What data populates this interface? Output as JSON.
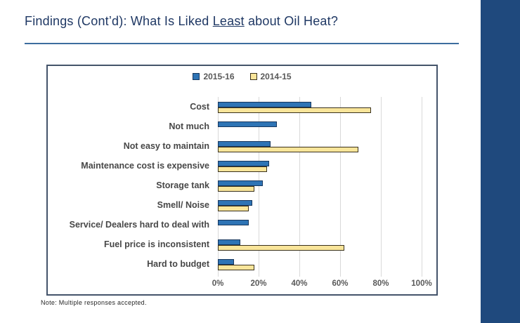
{
  "slide": {
    "title": {
      "prefix": "Findings (Cont’d): What Is Liked ",
      "underlined": "Least",
      "suffix": " about Oil Heat?"
    },
    "note": "Note: Multiple responses accepted."
  },
  "colors": {
    "title_text": "#1F3864",
    "title_rule": "#3C6D9E",
    "accent_band": "#1F497D",
    "chart_border": "#44546A",
    "gridline": "#D9D9D9",
    "category_label": "#474747",
    "axis_label": "#595959",
    "legend_label": "#595959"
  },
  "chart_data": {
    "type": "bar",
    "orientation": "horizontal",
    "categories": [
      "Cost",
      "Not much",
      "Not easy to maintain",
      "Maintenance cost is expensive",
      "Storage tank",
      "Smell/ Noise",
      "Service/ Dealers hard to deal with",
      "Fuel price is inconsistent",
      "Hard to budget"
    ],
    "series": [
      {
        "name": "2015-16",
        "fill": "#2E74B5",
        "border": "#17375E",
        "values": [
          46,
          29,
          26,
          25,
          22,
          17,
          15,
          11,
          8
        ]
      },
      {
        "name": "2014-15",
        "fill": "#F9E59A",
        "border": "#39311D",
        "values": [
          75,
          0,
          69,
          24,
          18,
          15,
          0,
          62,
          18
        ]
      }
    ],
    "xlim": [
      0,
      100
    ],
    "x_ticks": [
      "0%",
      "20%",
      "40%",
      "60%",
      "80%",
      "100%"
    ],
    "grid": true,
    "legend_position": "top-center",
    "value_unit": "%"
  }
}
